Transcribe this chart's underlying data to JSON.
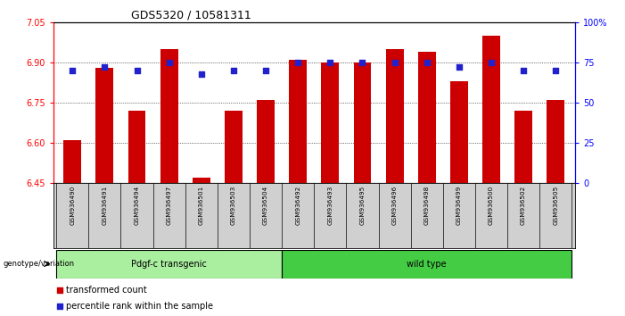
{
  "title": "GDS5320 / 10581311",
  "samples": [
    "GSM936490",
    "GSM936491",
    "GSM936494",
    "GSM936497",
    "GSM936501",
    "GSM936503",
    "GSM936504",
    "GSM936492",
    "GSM936493",
    "GSM936495",
    "GSM936496",
    "GSM936498",
    "GSM936499",
    "GSM936500",
    "GSM936502",
    "GSM936505"
  ],
  "bar_values": [
    6.61,
    6.88,
    6.72,
    6.95,
    6.47,
    6.72,
    6.76,
    6.91,
    6.9,
    6.9,
    6.95,
    6.94,
    6.83,
    7.0,
    6.72,
    6.76
  ],
  "percentile_values": [
    70,
    72,
    70,
    75,
    68,
    70,
    70,
    75,
    75,
    75,
    75,
    75,
    72,
    75,
    70,
    70
  ],
  "bar_color": "#cc0000",
  "dot_color": "#2222cc",
  "ylim_left": [
    6.45,
    7.05
  ],
  "ylim_right": [
    0,
    100
  ],
  "yticks_left": [
    6.45,
    6.6,
    6.75,
    6.9,
    7.05
  ],
  "yticks_right": [
    0,
    25,
    50,
    75,
    100
  ],
  "ytick_labels_right": [
    "0",
    "25",
    "50",
    "75",
    "100%"
  ],
  "group1_label": "Pdgf-c transgenic",
  "group2_label": "wild type",
  "group1_count": 7,
  "group2_count": 9,
  "group1_color": "#aaeea0",
  "group2_color": "#44cc44",
  "xlabel_left": "genotype/variation",
  "legend_transformed": "transformed count",
  "legend_percentile": "percentile rank within the sample",
  "bar_width": 0.55,
  "base_value": 6.45,
  "bg_color": "#ffffff",
  "label_bg_color": "#d0d0d0",
  "grid_color": "#333333"
}
